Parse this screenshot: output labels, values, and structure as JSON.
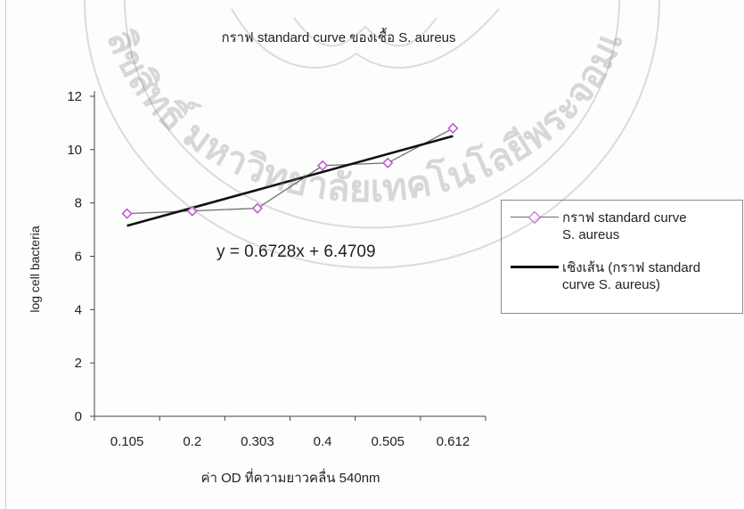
{
  "chart_data": {
    "type": "line",
    "title": "กราฟ standard curve ของเชื้อ S. aureus",
    "xlabel": "ค่า OD ที่ความยาวคลื่น 540nm",
    "ylabel": "log cell bacteria",
    "categories": [
      "0.105",
      "0.2",
      "0.303",
      "0.4",
      "0.505",
      "0.612"
    ],
    "ylim": [
      0,
      12
    ],
    "yticks": [
      "0",
      "2",
      "4",
      "6",
      "8",
      "10",
      "12"
    ],
    "grid": false,
    "legend_position": "right",
    "series": [
      {
        "name": "กราฟ standard curve S. aureus",
        "values": [
          7.6,
          7.7,
          7.8,
          9.4,
          9.5,
          10.8
        ],
        "color": "#c05bd0",
        "marker": "diamond"
      },
      {
        "name": "เชิงเส้น (กราฟ standard curve S. aureus)",
        "trendline": true,
        "slope": 0.6728,
        "intercept": 6.4709,
        "color": "#111111"
      }
    ],
    "annotation": "y = 0.6728x + 6.4709",
    "legend_lines": [
      [
        "กราฟ standard curve",
        "S. aureus"
      ],
      [
        "เชิงเส้น (กราฟ standard",
        "curve S. aureus)"
      ]
    ]
  },
  "watermark": {
    "text": "ลิขสิทธิ์ มหาวิทยาลัยเทคโนโลยีพระจอมเกล้าเจ้าคุณทหารลาดกระบัง"
  }
}
